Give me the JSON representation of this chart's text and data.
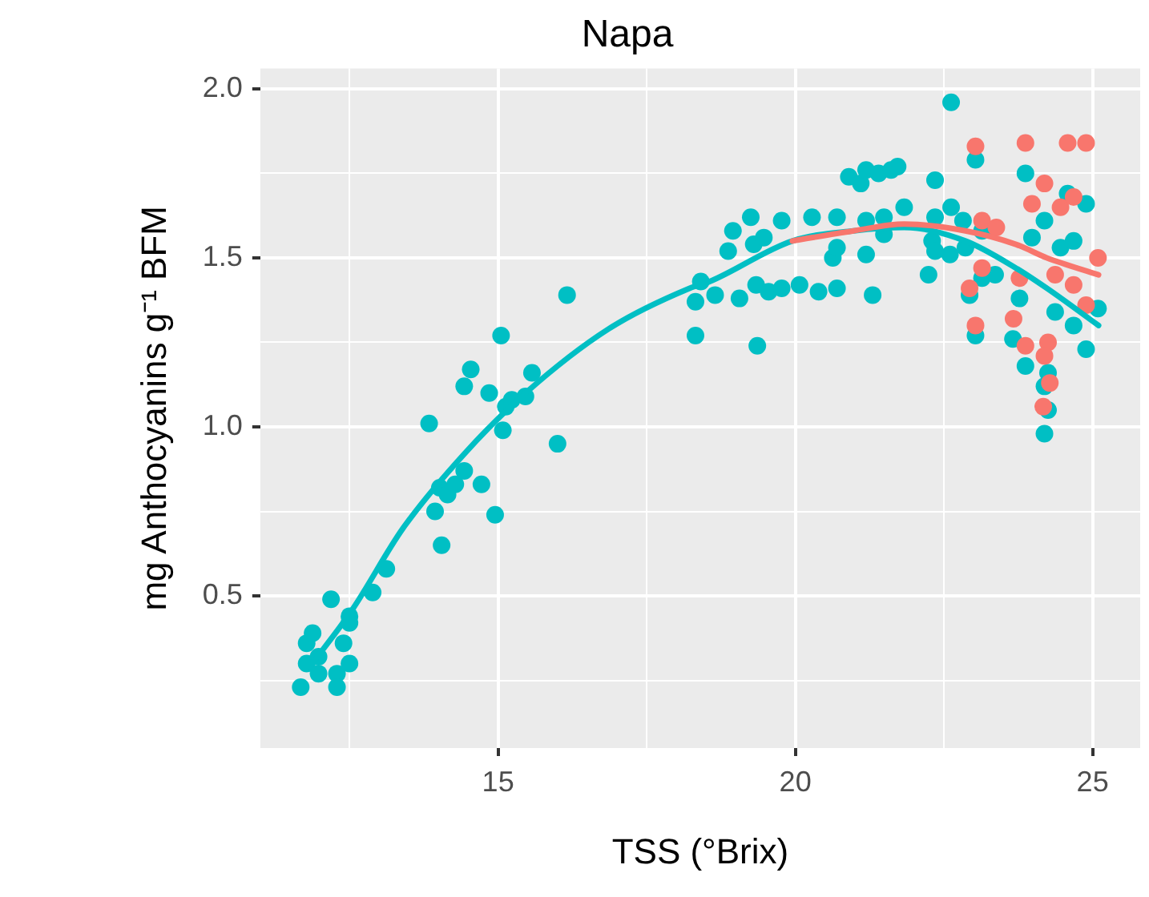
{
  "chart_data": {
    "type": "scatter",
    "title": "Napa",
    "xlabel": "TSS (°Brix)",
    "ylabel": "mg Anthocyanins g⁻¹ BFM",
    "xlim": [
      11,
      25.8
    ],
    "ylim": [
      0.05,
      2.06
    ],
    "xticks": [
      {
        "value": 12.5,
        "label": null
      },
      15,
      {
        "value": 17.5,
        "label": null
      },
      20,
      {
        "value": 22.5,
        "label": null
      },
      25
    ],
    "yticks": [
      {
        "value": 0.25,
        "label": null
      },
      {
        "value": 0.5,
        "label": "0.5"
      },
      {
        "value": 0.75,
        "label": null
      },
      {
        "value": 1,
        "label": "1.0"
      },
      {
        "value": 1.25,
        "label": null
      },
      {
        "value": 1.5,
        "label": "1.5"
      },
      {
        "value": 1.75,
        "label": null
      },
      {
        "value": 2,
        "label": "2.0"
      }
    ],
    "grid": true,
    "legend": false,
    "marker": "circle",
    "series": [
      {
        "color": "#f8766d",
        "x": [
          23.03,
          22.93,
          23.03,
          23.14,
          23.14,
          23.38,
          23.67,
          23.77,
          23.87,
          23.87,
          23.98,
          24.19,
          24.25,
          24.19,
          24.28,
          24.17,
          24.37,
          24.46,
          24.58,
          24.68,
          24.68,
          24.89,
          24.89,
          25.09
        ],
        "values": [
          1.83,
          1.41,
          1.3,
          1.47,
          1.61,
          1.59,
          1.32,
          1.44,
          1.84,
          1.24,
          1.66,
          1.72,
          1.25,
          1.21,
          1.13,
          1.06,
          1.45,
          1.65,
          1.84,
          1.68,
          1.42,
          1.84,
          1.36,
          1.5
        ]
      },
      {
        "color": "#00bfc4",
        "x": [
          11.68,
          11.78,
          11.88,
          11.78,
          11.98,
          11.98,
          12.19,
          12.29,
          12.29,
          12.4,
          12.5,
          12.5,
          12.5,
          12.89,
          13.12,
          13.84,
          13.94,
          14.05,
          14.02,
          14.15,
          14.28,
          14.43,
          14.43,
          14.54,
          14.72,
          14.85,
          14.95,
          15.05,
          15.08,
          15.13,
          15.23,
          15.46,
          15.57,
          16.0,
          16.16,
          18.32,
          18.32,
          18.41,
          18.65,
          18.87,
          18.95,
          19.06,
          19.25,
          19.3,
          19.34,
          19.36,
          19.47,
          19.55,
          19.77,
          19.77,
          20.07,
          20.28,
          20.39,
          20.63,
          20.7,
          20.7,
          20.7,
          20.9,
          21.1,
          21.19,
          21.19,
          21.19,
          21.3,
          21.4,
          21.49,
          21.49,
          21.61,
          21.72,
          21.83,
          22.24,
          22.3,
          22.35,
          22.35,
          22.35,
          22.62,
          22.62,
          22.6,
          22.82,
          22.86,
          22.93,
          23.03,
          23.03,
          23.14,
          23.14,
          23.36,
          23.66,
          23.77,
          23.87,
          23.87,
          23.98,
          24.19,
          24.25,
          24.19,
          24.25,
          24.19,
          24.37,
          24.46,
          24.58,
          24.68,
          24.68,
          24.89,
          24.89,
          25.09
        ],
        "values": [
          0.23,
          0.36,
          0.39,
          0.3,
          0.27,
          0.32,
          0.49,
          0.27,
          0.23,
          0.36,
          0.44,
          0.42,
          0.3,
          0.51,
          0.58,
          1.01,
          0.75,
          0.65,
          0.82,
          0.8,
          0.83,
          0.87,
          1.12,
          1.17,
          0.83,
          1.1,
          0.74,
          1.27,
          0.99,
          1.06,
          1.08,
          1.09,
          1.16,
          0.95,
          1.39,
          1.27,
          1.37,
          1.43,
          1.39,
          1.52,
          1.58,
          1.38,
          1.62,
          1.54,
          1.42,
          1.24,
          1.56,
          1.4,
          1.61,
          1.41,
          1.42,
          1.62,
          1.4,
          1.5,
          1.62,
          1.53,
          1.41,
          1.74,
          1.72,
          1.76,
          1.61,
          1.51,
          1.39,
          1.75,
          1.62,
          1.57,
          1.76,
          1.77,
          1.65,
          1.45,
          1.55,
          1.73,
          1.62,
          1.52,
          1.96,
          1.65,
          1.51,
          1.61,
          1.53,
          1.39,
          1.79,
          1.27,
          1.58,
          1.44,
          1.45,
          1.26,
          1.38,
          1.75,
          1.18,
          1.56,
          1.61,
          1.16,
          1.12,
          1.05,
          0.98,
          1.34,
          1.53,
          1.69,
          1.55,
          1.3,
          1.66,
          1.23,
          1.35
        ]
      },
      {
        "type": "line",
        "marker": "none",
        "color": "#f8766d",
        "x": [
          19.95,
          20.98,
          21.83,
          22.86,
          23.71,
          24.23,
          25.1
        ],
        "values": [
          1.55,
          1.58,
          1.6,
          1.58,
          1.54,
          1.5,
          1.45
        ]
      },
      {
        "type": "line",
        "marker": "none",
        "color": "#00bfc4",
        "x": [
          11.83,
          12.55,
          13.4,
          14.43,
          15.46,
          16.86,
          18.22,
          18.56,
          19.95,
          20.98,
          21.83,
          22.86,
          23.71,
          24.23,
          25.1
        ],
        "values": [
          0.29,
          0.46,
          0.7,
          0.92,
          1.1,
          1.29,
          1.41,
          1.43,
          1.55,
          1.58,
          1.59,
          1.55,
          1.47,
          1.41,
          1.3
        ]
      }
    ]
  }
}
